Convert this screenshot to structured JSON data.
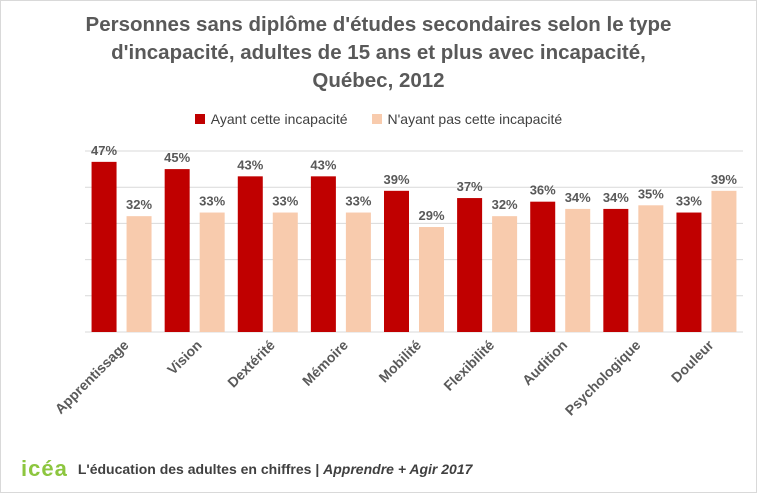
{
  "title_lines": [
    "Personnes sans diplôme d'études secondaires selon le type",
    "d'incapacité, adultes de 15 ans et plus avec incapacité,",
    "Québec, 2012"
  ],
  "colors": {
    "series1": "#c00000",
    "series2": "#f8cbad",
    "grid": "#d9d9d9",
    "label": "#595959"
  },
  "footer": {
    "logo": "icéa",
    "text_main": "L'éducation des adultes en chiffres | ",
    "text_italic": "Apprendre + Agir 2017"
  },
  "chart_data": {
    "type": "bar",
    "categories": [
      "Apprentissage",
      "Vision",
      "Dextérité",
      "Mémoire",
      "Mobilité",
      "Flexibilité",
      "Audition",
      "Psychologique",
      "Douleur"
    ],
    "series": [
      {
        "name": "Ayant cette incapacité",
        "values": [
          47,
          45,
          43,
          43,
          39,
          37,
          36,
          34,
          33
        ]
      },
      {
        "name": "N'ayant pas cette incapacité",
        "values": [
          32,
          33,
          33,
          33,
          29,
          32,
          34,
          35,
          39
        ]
      }
    ],
    "value_suffix": "%",
    "ylim": [
      0,
      50
    ],
    "grid": true,
    "legend": "top-center"
  }
}
